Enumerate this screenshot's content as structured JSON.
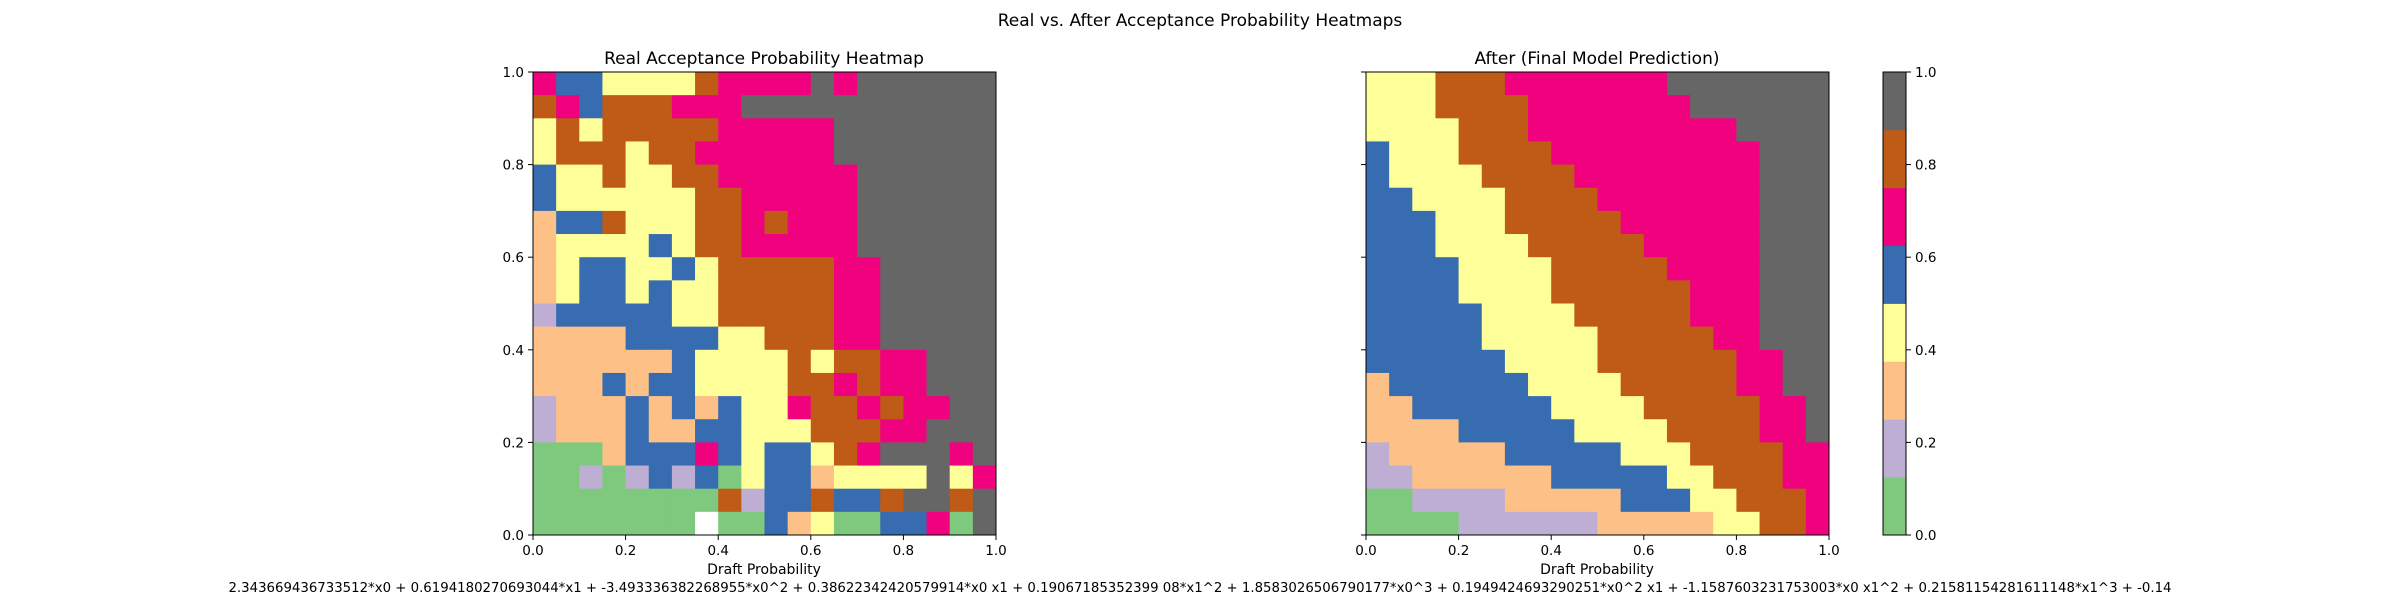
{
  "figure": {
    "suptitle": "Real vs. After Acceptance Probability Heatmaps",
    "formula": "2.343669436733512*x0 + 0.6194180270693044*x1 + -3.493336382268955*x0^2 + 0.38622342420579914*x0 x1 + 0.19067185352399 08*x1^2 + 1.8583026506790177*x0^3 + 0.1949424693290251*x0^2 x1 + -1.1587603231753003*x0 x1^2 + 0.21581154281611148*x1^3 + -0.14"
  },
  "chart_data": [
    {
      "type": "heatmap",
      "title": "Real Acceptance Probability Heatmap",
      "xlabel": "Draft Probability",
      "ylabel": "",
      "xlim": [
        0,
        1
      ],
      "ylim": [
        0,
        1
      ],
      "xticks": [
        "0.0",
        "0.2",
        "0.4",
        "0.6",
        "0.8",
        "1.0"
      ],
      "yticks": [
        "0.0",
        "0.2",
        "0.4",
        "0.6",
        "0.8",
        "1.0"
      ],
      "grid_size": 20,
      "levels_note": "cell values are colour-level indices 0-7 (level k covers acceptance probability k/8 to (k+1)/8); -1 = no data",
      "rows_top_to_bottom": [
        [
          5,
          4,
          4,
          3,
          3,
          3,
          3,
          6,
          5,
          5,
          5,
          5,
          7,
          5,
          7,
          7,
          7,
          7,
          7,
          7
        ],
        [
          6,
          5,
          4,
          6,
          6,
          6,
          5,
          5,
          5,
          7,
          7,
          7,
          7,
          7,
          7,
          7,
          7,
          7,
          7,
          7
        ],
        [
          3,
          6,
          3,
          6,
          6,
          6,
          6,
          6,
          5,
          5,
          5,
          5,
          5,
          7,
          7,
          7,
          7,
          7,
          7,
          7
        ],
        [
          3,
          6,
          6,
          6,
          3,
          6,
          6,
          5,
          5,
          5,
          5,
          5,
          5,
          7,
          7,
          7,
          7,
          7,
          7,
          7
        ],
        [
          4,
          3,
          3,
          6,
          3,
          3,
          6,
          6,
          5,
          5,
          5,
          5,
          5,
          5,
          7,
          7,
          7,
          7,
          7,
          7
        ],
        [
          4,
          3,
          3,
          3,
          3,
          3,
          3,
          6,
          6,
          5,
          5,
          5,
          5,
          5,
          7,
          7,
          7,
          7,
          7,
          7
        ],
        [
          2,
          4,
          4,
          6,
          3,
          3,
          3,
          6,
          6,
          5,
          6,
          5,
          5,
          5,
          7,
          7,
          7,
          7,
          7,
          7
        ],
        [
          2,
          3,
          3,
          3,
          3,
          4,
          3,
          6,
          6,
          5,
          5,
          5,
          5,
          5,
          7,
          7,
          7,
          7,
          7,
          7
        ],
        [
          2,
          3,
          4,
          4,
          3,
          3,
          4,
          3,
          6,
          6,
          6,
          6,
          6,
          5,
          5,
          7,
          7,
          7,
          7,
          7
        ],
        [
          2,
          3,
          4,
          4,
          3,
          4,
          3,
          3,
          6,
          6,
          6,
          6,
          6,
          5,
          5,
          7,
          7,
          7,
          7,
          7
        ],
        [
          1,
          4,
          4,
          4,
          4,
          4,
          3,
          3,
          6,
          6,
          6,
          6,
          6,
          5,
          5,
          7,
          7,
          7,
          7,
          7
        ],
        [
          2,
          2,
          2,
          2,
          4,
          4,
          4,
          4,
          3,
          3,
          6,
          6,
          6,
          5,
          5,
          7,
          7,
          7,
          7,
          7
        ],
        [
          2,
          2,
          2,
          2,
          2,
          2,
          4,
          3,
          3,
          3,
          3,
          6,
          3,
          6,
          6,
          5,
          5,
          7,
          7,
          7
        ],
        [
          2,
          2,
          2,
          4,
          2,
          4,
          4,
          3,
          3,
          3,
          3,
          6,
          6,
          5,
          6,
          5,
          5,
          7,
          7,
          7
        ],
        [
          1,
          2,
          2,
          2,
          4,
          2,
          4,
          2,
          4,
          3,
          3,
          5,
          6,
          6,
          5,
          6,
          5,
          5,
          7,
          7
        ],
        [
          1,
          2,
          2,
          2,
          4,
          2,
          2,
          4,
          4,
          3,
          3,
          3,
          6,
          6,
          6,
          5,
          5,
          7,
          7,
          7
        ],
        [
          0,
          0,
          0,
          2,
          4,
          4,
          4,
          5,
          4,
          3,
          4,
          4,
          3,
          6,
          5,
          7,
          7,
          7,
          5,
          7
        ],
        [
          0,
          0,
          1,
          0,
          1,
          4,
          1,
          4,
          0,
          3,
          4,
          4,
          2,
          3,
          3,
          3,
          3,
          7,
          3,
          5
        ],
        [
          0,
          0,
          0,
          0,
          0,
          0,
          0,
          0,
          6,
          1,
          4,
          4,
          6,
          4,
          4,
          6,
          7,
          7,
          6,
          7
        ],
        [
          0,
          0,
          0,
          0,
          0,
          0,
          0,
          -1,
          0,
          0,
          4,
          2,
          3,
          0,
          0,
          4,
          4,
          5,
          0,
          7
        ]
      ]
    },
    {
      "type": "heatmap",
      "title": "After (Final Model Prediction)",
      "xlabel": "Draft Probability",
      "ylabel": "",
      "xlim": [
        0,
        1
      ],
      "ylim": [
        0,
        1
      ],
      "xticks": [
        "0.0",
        "0.2",
        "0.4",
        "0.6",
        "0.8",
        "1.0"
      ],
      "grid_size": 20,
      "levels_note": "cell values are colour-level indices 0-7 (level k covers acceptance probability k/8 to (k+1)/8)",
      "rows_top_to_bottom": [
        [
          3,
          3,
          3,
          6,
          6,
          6,
          5,
          5,
          5,
          5,
          5,
          5,
          5,
          7,
          7,
          7,
          7,
          7,
          7,
          7
        ],
        [
          3,
          3,
          3,
          6,
          6,
          6,
          6,
          5,
          5,
          5,
          5,
          5,
          5,
          5,
          7,
          7,
          7,
          7,
          7,
          7
        ],
        [
          3,
          3,
          3,
          3,
          6,
          6,
          6,
          5,
          5,
          5,
          5,
          5,
          5,
          5,
          5,
          5,
          7,
          7,
          7,
          7
        ],
        [
          4,
          3,
          3,
          3,
          6,
          6,
          6,
          6,
          5,
          5,
          5,
          5,
          5,
          5,
          5,
          5,
          5,
          7,
          7,
          7
        ],
        [
          4,
          3,
          3,
          3,
          3,
          6,
          6,
          6,
          6,
          5,
          5,
          5,
          5,
          5,
          5,
          5,
          5,
          7,
          7,
          7
        ],
        [
          4,
          4,
          3,
          3,
          3,
          3,
          6,
          6,
          6,
          6,
          5,
          5,
          5,
          5,
          5,
          5,
          5,
          7,
          7,
          7
        ],
        [
          4,
          4,
          4,
          3,
          3,
          3,
          6,
          6,
          6,
          6,
          6,
          5,
          5,
          5,
          5,
          5,
          5,
          7,
          7,
          7
        ],
        [
          4,
          4,
          4,
          3,
          3,
          3,
          3,
          6,
          6,
          6,
          6,
          6,
          5,
          5,
          5,
          5,
          5,
          7,
          7,
          7
        ],
        [
          4,
          4,
          4,
          4,
          3,
          3,
          3,
          3,
          6,
          6,
          6,
          6,
          6,
          5,
          5,
          5,
          5,
          7,
          7,
          7
        ],
        [
          4,
          4,
          4,
          4,
          3,
          3,
          3,
          3,
          6,
          6,
          6,
          6,
          6,
          6,
          5,
          5,
          5,
          7,
          7,
          7
        ],
        [
          4,
          4,
          4,
          4,
          4,
          3,
          3,
          3,
          3,
          6,
          6,
          6,
          6,
          6,
          5,
          5,
          5,
          7,
          7,
          7
        ],
        [
          4,
          4,
          4,
          4,
          4,
          3,
          3,
          3,
          3,
          3,
          6,
          6,
          6,
          6,
          6,
          5,
          5,
          7,
          7,
          7
        ],
        [
          4,
          4,
          4,
          4,
          4,
          4,
          3,
          3,
          3,
          3,
          6,
          6,
          6,
          6,
          6,
          6,
          5,
          5,
          7,
          7
        ],
        [
          2,
          4,
          4,
          4,
          4,
          4,
          4,
          3,
          3,
          3,
          3,
          6,
          6,
          6,
          6,
          6,
          5,
          5,
          7,
          7
        ],
        [
          2,
          2,
          4,
          4,
          4,
          4,
          4,
          4,
          3,
          3,
          3,
          3,
          6,
          6,
          6,
          6,
          6,
          5,
          5,
          7
        ],
        [
          2,
          2,
          2,
          2,
          4,
          4,
          4,
          4,
          4,
          3,
          3,
          3,
          3,
          6,
          6,
          6,
          6,
          5,
          5,
          7
        ],
        [
          1,
          2,
          2,
          2,
          2,
          2,
          4,
          4,
          4,
          4,
          4,
          3,
          3,
          3,
          6,
          6,
          6,
          6,
          5,
          5
        ],
        [
          1,
          1,
          2,
          2,
          2,
          2,
          2,
          2,
          4,
          4,
          4,
          4,
          4,
          3,
          3,
          6,
          6,
          6,
          5,
          5
        ],
        [
          0,
          0,
          1,
          1,
          1,
          1,
          2,
          2,
          2,
          2,
          2,
          4,
          4,
          4,
          3,
          3,
          6,
          6,
          6,
          5
        ],
        [
          0,
          0,
          0,
          0,
          1,
          1,
          1,
          1,
          1,
          1,
          2,
          2,
          2,
          2,
          2,
          3,
          3,
          6,
          6,
          5
        ]
      ]
    },
    {
      "type": "colorbar",
      "range": [
        0,
        1
      ],
      "ticks": [
        "0.0",
        "0.2",
        "0.4",
        "0.6",
        "0.8",
        "1.0"
      ],
      "colormap": [
        "#7fc97f",
        "#beaed4",
        "#fdc086",
        "#ffff99",
        "#386cb0",
        "#f0027f",
        "#bf5b17",
        "#666666"
      ],
      "missing_color": "#ffffff"
    }
  ]
}
